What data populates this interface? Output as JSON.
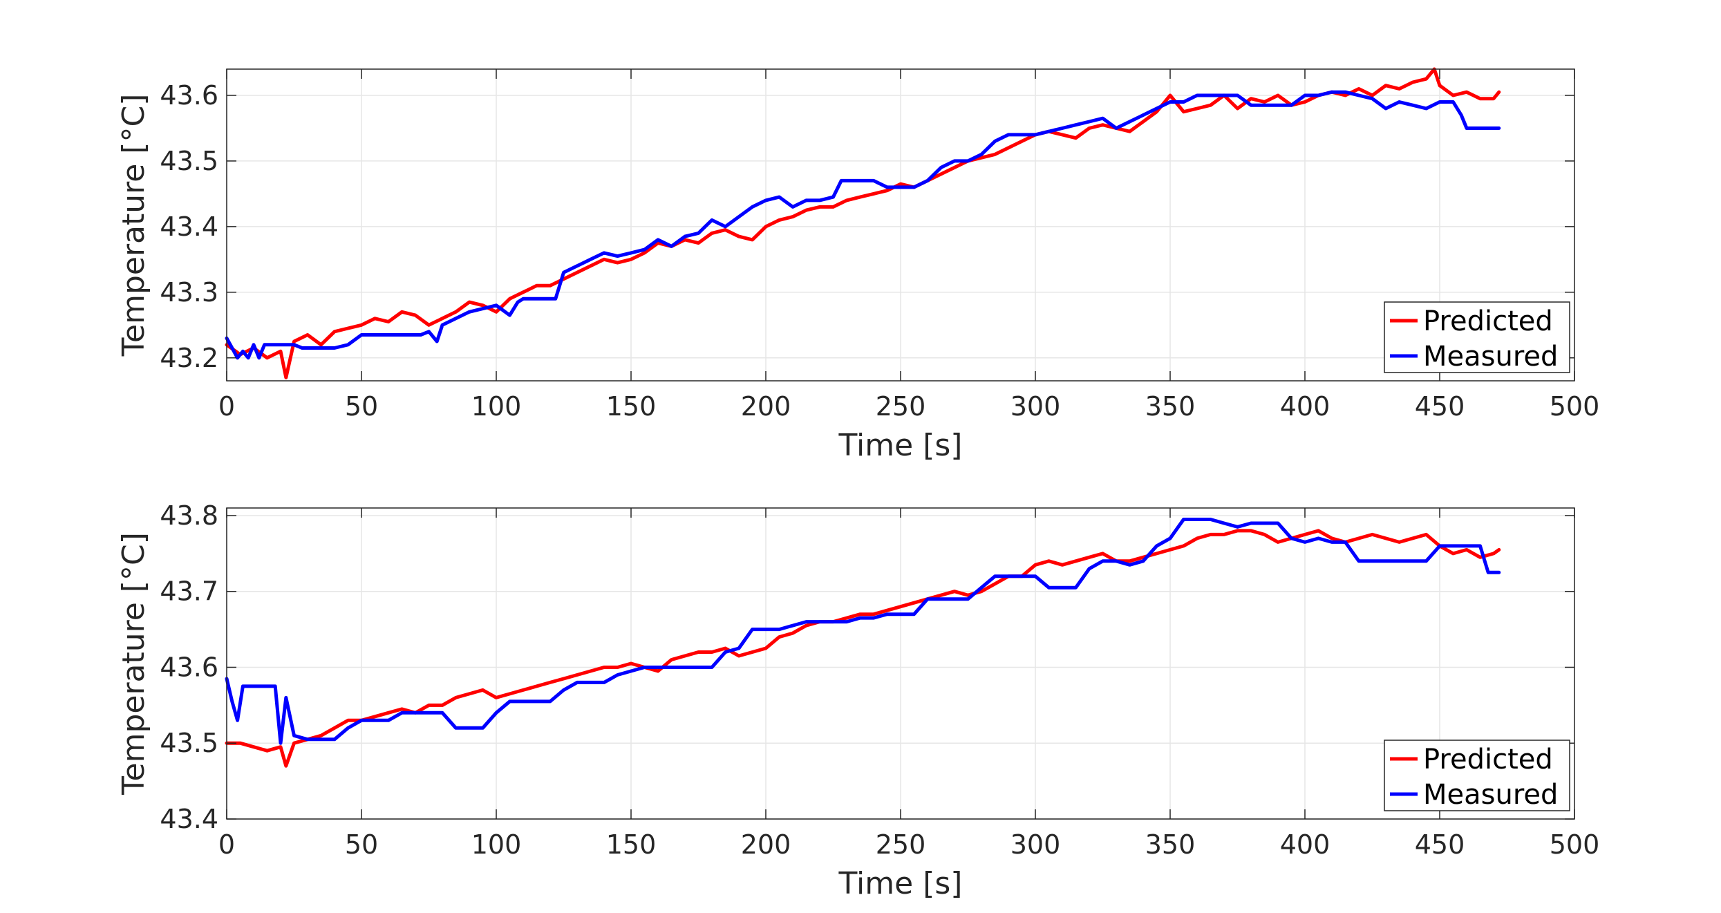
{
  "chart_data": [
    {
      "type": "line",
      "title": "",
      "xlabel": "Time [s]",
      "ylabel": "Temperature [°C]",
      "xlim": [
        0,
        500
      ],
      "ylim": [
        43.165,
        43.64
      ],
      "xticks": [
        0,
        50,
        100,
        150,
        200,
        250,
        300,
        350,
        400,
        450,
        500
      ],
      "yticks": [
        43.2,
        43.3,
        43.4,
        43.5,
        43.6
      ],
      "xtick_labels": [
        "0",
        "50",
        "100",
        "150",
        "200",
        "250",
        "300",
        "350",
        "400",
        "450",
        "500"
      ],
      "ytick_labels": [
        "43.2",
        "43.3",
        "43.4",
        "43.5",
        "43.6"
      ],
      "grid": true,
      "legend_position": "bottom-right",
      "series": [
        {
          "name": "Predicted",
          "color": "#ff0000",
          "x": [
            0,
            5,
            10,
            15,
            20,
            22,
            25,
            30,
            35,
            40,
            45,
            50,
            55,
            60,
            65,
            70,
            75,
            80,
            85,
            90,
            95,
            100,
            105,
            110,
            115,
            120,
            125,
            130,
            135,
            140,
            145,
            150,
            155,
            160,
            165,
            170,
            175,
            180,
            185,
            190,
            195,
            200,
            205,
            210,
            215,
            220,
            225,
            230,
            235,
            240,
            245,
            250,
            255,
            260,
            265,
            270,
            275,
            280,
            285,
            290,
            295,
            300,
            305,
            310,
            315,
            320,
            325,
            330,
            335,
            340,
            345,
            350,
            355,
            360,
            365,
            370,
            375,
            380,
            385,
            390,
            395,
            400,
            405,
            410,
            415,
            420,
            425,
            430,
            435,
            440,
            445,
            448,
            450,
            455,
            460,
            465,
            470,
            472
          ],
          "y": [
            43.22,
            43.205,
            43.215,
            43.2,
            43.21,
            43.17,
            43.225,
            43.235,
            43.22,
            43.24,
            43.245,
            43.25,
            43.26,
            43.255,
            43.27,
            43.265,
            43.25,
            43.26,
            43.27,
            43.285,
            43.28,
            43.27,
            43.29,
            43.3,
            43.31,
            43.31,
            43.32,
            43.33,
            43.34,
            43.35,
            43.345,
            43.35,
            43.36,
            43.375,
            43.37,
            43.38,
            43.375,
            43.39,
            43.395,
            43.385,
            43.38,
            43.4,
            43.41,
            43.415,
            43.425,
            43.43,
            43.43,
            43.44,
            43.445,
            43.45,
            43.455,
            43.465,
            43.46,
            43.47,
            43.48,
            43.49,
            43.5,
            43.505,
            43.51,
            43.52,
            43.53,
            43.54,
            43.545,
            43.54,
            43.535,
            43.55,
            43.555,
            43.55,
            43.545,
            43.56,
            43.575,
            43.6,
            43.575,
            43.58,
            43.585,
            43.6,
            43.58,
            43.595,
            43.59,
            43.6,
            43.585,
            43.59,
            43.6,
            43.605,
            43.6,
            43.61,
            43.6,
            43.615,
            43.61,
            43.62,
            43.625,
            43.64,
            43.615,
            43.6,
            43.605,
            43.595,
            43.595,
            43.605
          ]
        },
        {
          "name": "Measured",
          "color": "#0000ff",
          "x": [
            0,
            2,
            4,
            6,
            8,
            10,
            12,
            14,
            16,
            18,
            20,
            25,
            28,
            30,
            35,
            40,
            45,
            50,
            55,
            60,
            65,
            70,
            72,
            75,
            78,
            80,
            85,
            90,
            95,
            100,
            105,
            108,
            110,
            115,
            120,
            122,
            125,
            130,
            135,
            140,
            145,
            150,
            155,
            160,
            165,
            170,
            175,
            180,
            185,
            190,
            195,
            200,
            205,
            210,
            215,
            220,
            225,
            228,
            230,
            235,
            240,
            245,
            250,
            255,
            260,
            265,
            270,
            275,
            280,
            285,
            290,
            295,
            300,
            305,
            310,
            315,
            320,
            325,
            330,
            335,
            340,
            345,
            350,
            355,
            360,
            365,
            370,
            375,
            380,
            385,
            390,
            395,
            400,
            405,
            410,
            415,
            420,
            425,
            430,
            435,
            440,
            445,
            450,
            455,
            458,
            460,
            465,
            472
          ],
          "y": [
            43.23,
            43.215,
            43.2,
            43.21,
            43.2,
            43.22,
            43.2,
            43.22,
            43.22,
            43.22,
            43.22,
            43.22,
            43.215,
            43.215,
            43.215,
            43.215,
            43.22,
            43.235,
            43.235,
            43.235,
            43.235,
            43.235,
            43.235,
            43.24,
            43.225,
            43.25,
            43.26,
            43.27,
            43.275,
            43.28,
            43.265,
            43.285,
            43.29,
            43.29,
            43.29,
            43.29,
            43.33,
            43.34,
            43.35,
            43.36,
            43.355,
            43.36,
            43.365,
            43.38,
            43.37,
            43.385,
            43.39,
            43.41,
            43.4,
            43.415,
            43.43,
            43.44,
            43.445,
            43.43,
            43.44,
            43.44,
            43.445,
            43.47,
            43.47,
            43.47,
            43.47,
            43.46,
            43.46,
            43.46,
            43.47,
            43.49,
            43.5,
            43.5,
            43.51,
            43.53,
            43.54,
            43.54,
            43.54,
            43.545,
            43.55,
            43.555,
            43.56,
            43.565,
            43.55,
            43.56,
            43.57,
            43.58,
            43.59,
            43.59,
            43.6,
            43.6,
            43.6,
            43.6,
            43.585,
            43.585,
            43.585,
            43.585,
            43.6,
            43.6,
            43.605,
            43.605,
            43.6,
            43.595,
            43.58,
            43.59,
            43.585,
            43.58,
            43.59,
            43.59,
            43.57,
            43.55,
            43.55,
            43.55
          ]
        }
      ]
    },
    {
      "type": "line",
      "title": "",
      "xlabel": "Time [s]",
      "ylabel": "Temperature [°C]",
      "xlim": [
        0,
        500
      ],
      "ylim": [
        43.4,
        43.81
      ],
      "xticks": [
        0,
        50,
        100,
        150,
        200,
        250,
        300,
        350,
        400,
        450,
        500
      ],
      "yticks": [
        43.4,
        43.5,
        43.6,
        43.7,
        43.8
      ],
      "xtick_labels": [
        "0",
        "50",
        "100",
        "150",
        "200",
        "250",
        "300",
        "350",
        "400",
        "450",
        "500"
      ],
      "ytick_labels": [
        "43.4",
        "43.5",
        "43.6",
        "43.7",
        "43.8"
      ],
      "grid": true,
      "legend_position": "bottom-right",
      "series": [
        {
          "name": "Predicted",
          "color": "#ff0000",
          "x": [
            0,
            5,
            10,
            15,
            20,
            22,
            25,
            30,
            35,
            40,
            45,
            50,
            55,
            60,
            65,
            70,
            75,
            80,
            85,
            90,
            95,
            100,
            105,
            110,
            115,
            120,
            125,
            130,
            135,
            140,
            145,
            150,
            155,
            160,
            165,
            170,
            175,
            180,
            185,
            190,
            195,
            200,
            205,
            210,
            215,
            220,
            225,
            230,
            235,
            240,
            245,
            250,
            255,
            260,
            265,
            270,
            275,
            280,
            285,
            290,
            295,
            300,
            305,
            310,
            315,
            320,
            325,
            330,
            335,
            340,
            345,
            350,
            355,
            360,
            365,
            370,
            375,
            380,
            385,
            390,
            395,
            400,
            405,
            410,
            415,
            420,
            425,
            430,
            435,
            440,
            445,
            450,
            455,
            460,
            465,
            470,
            472
          ],
          "y": [
            43.5,
            43.5,
            43.495,
            43.49,
            43.495,
            43.47,
            43.5,
            43.505,
            43.51,
            43.52,
            43.53,
            43.53,
            43.535,
            43.54,
            43.545,
            43.54,
            43.55,
            43.55,
            43.56,
            43.565,
            43.57,
            43.56,
            43.565,
            43.57,
            43.575,
            43.58,
            43.585,
            43.59,
            43.595,
            43.6,
            43.6,
            43.605,
            43.6,
            43.595,
            43.61,
            43.615,
            43.62,
            43.62,
            43.625,
            43.615,
            43.62,
            43.625,
            43.64,
            43.645,
            43.655,
            43.66,
            43.66,
            43.665,
            43.67,
            43.67,
            43.675,
            43.68,
            43.685,
            43.69,
            43.695,
            43.7,
            43.695,
            43.7,
            43.71,
            43.72,
            43.72,
            43.735,
            43.74,
            43.735,
            43.74,
            43.745,
            43.75,
            43.74,
            43.74,
            43.745,
            43.75,
            43.755,
            43.76,
            43.77,
            43.775,
            43.775,
            43.78,
            43.78,
            43.775,
            43.765,
            43.77,
            43.775,
            43.78,
            43.77,
            43.765,
            43.77,
            43.775,
            43.77,
            43.765,
            43.77,
            43.775,
            43.76,
            43.75,
            43.755,
            43.745,
            43.75,
            43.755
          ]
        },
        {
          "name": "Measured",
          "color": "#0000ff",
          "x": [
            0,
            2,
            4,
            6,
            8,
            10,
            12,
            14,
            16,
            18,
            20,
            22,
            25,
            30,
            35,
            40,
            45,
            50,
            55,
            60,
            65,
            70,
            75,
            80,
            85,
            90,
            95,
            100,
            105,
            110,
            115,
            120,
            125,
            130,
            135,
            140,
            145,
            150,
            155,
            160,
            165,
            170,
            175,
            180,
            185,
            190,
            195,
            200,
            205,
            210,
            215,
            220,
            225,
            230,
            235,
            240,
            245,
            250,
            255,
            260,
            265,
            270,
            275,
            280,
            285,
            290,
            295,
            300,
            305,
            310,
            315,
            320,
            325,
            330,
            335,
            340,
            345,
            350,
            355,
            360,
            365,
            370,
            375,
            380,
            385,
            390,
            395,
            400,
            405,
            410,
            415,
            420,
            425,
            430,
            435,
            440,
            445,
            450,
            455,
            460,
            465,
            468,
            472
          ],
          "y": [
            43.585,
            43.555,
            43.53,
            43.575,
            43.575,
            43.575,
            43.575,
            43.575,
            43.575,
            43.575,
            43.5,
            43.56,
            43.51,
            43.505,
            43.505,
            43.505,
            43.52,
            43.53,
            43.53,
            43.53,
            43.54,
            43.54,
            43.54,
            43.54,
            43.52,
            43.52,
            43.52,
            43.54,
            43.555,
            43.555,
            43.555,
            43.555,
            43.57,
            43.58,
            43.58,
            43.58,
            43.59,
            43.595,
            43.6,
            43.6,
            43.6,
            43.6,
            43.6,
            43.6,
            43.62,
            43.625,
            43.65,
            43.65,
            43.65,
            43.655,
            43.66,
            43.66,
            43.66,
            43.66,
            43.665,
            43.665,
            43.67,
            43.67,
            43.67,
            43.69,
            43.69,
            43.69,
            43.69,
            43.705,
            43.72,
            43.72,
            43.72,
            43.72,
            43.705,
            43.705,
            43.705,
            43.73,
            43.74,
            43.74,
            43.735,
            43.74,
            43.76,
            43.77,
            43.795,
            43.795,
            43.795,
            43.79,
            43.785,
            43.79,
            43.79,
            43.79,
            43.77,
            43.765,
            43.77,
            43.765,
            43.765,
            43.74,
            43.74,
            43.74,
            43.74,
            43.74,
            43.74,
            43.76,
            43.76,
            43.76,
            43.76,
            43.725,
            43.725
          ]
        }
      ]
    }
  ]
}
